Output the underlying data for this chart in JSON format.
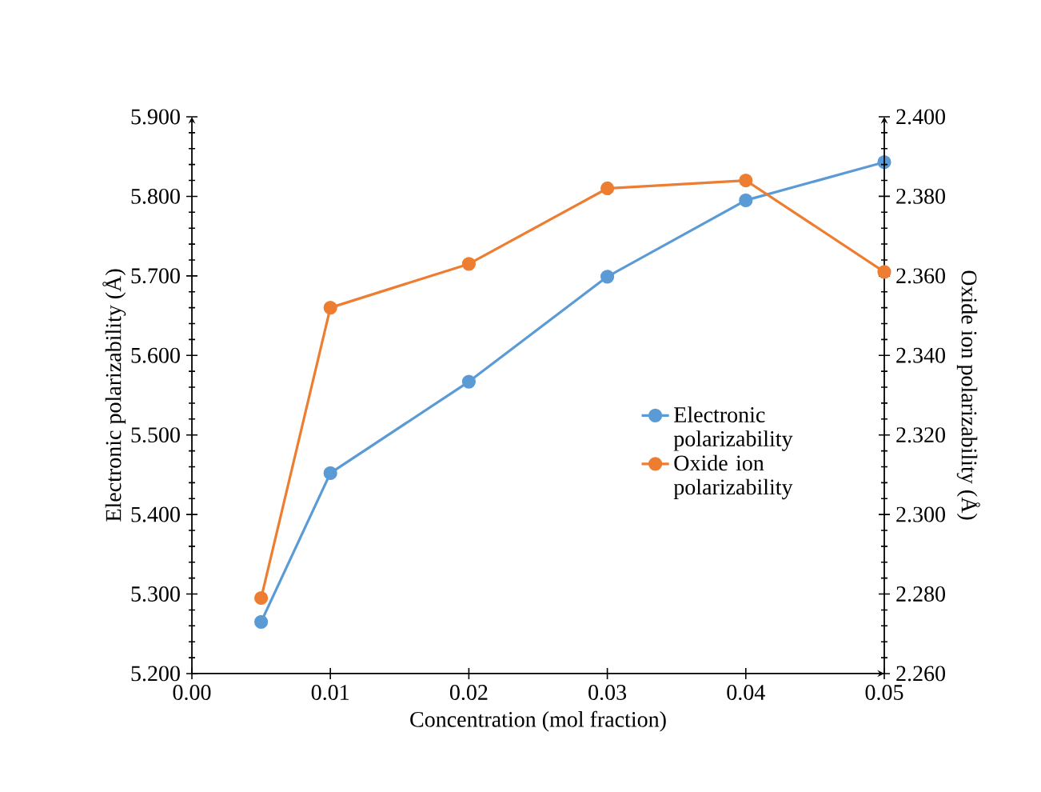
{
  "chart_data": {
    "type": "line",
    "xlabel": "Concentration (mol fraction)",
    "ylabel": "Electronic polarizability (Å)",
    "y2label": "Oxide ion polarizability (Å)",
    "series": [
      {
        "name": "Electronic polarizability",
        "color": "#5b9bd5",
        "x": [
          0.005,
          0.01,
          0.02,
          0.03,
          0.04,
          0.05
        ],
        "values": [
          5.265,
          5.452,
          5.567,
          5.699,
          5.795,
          5.843
        ]
      },
      {
        "name": "Oxide ion polarizability",
        "color": "#ed7d31",
        "axis": "y2",
        "x": [
          0.005,
          0.01,
          0.02,
          0.03,
          0.04,
          0.05
        ],
        "values": [
          2.279,
          2.352,
          2.363,
          2.382,
          2.384,
          2.361
        ]
      }
    ],
    "xlim": [
      0,
      0.05
    ],
    "xticks": [
      {
        "value": 0,
        "label": "0.00"
      },
      {
        "value": 0.01,
        "label": "0.01"
      },
      {
        "value": 0.02,
        "label": "0.02"
      },
      {
        "value": 0.03,
        "label": "0.03"
      },
      {
        "value": 0.04,
        "label": "0.04"
      },
      {
        "value": 0.05,
        "label": "0.05"
      }
    ],
    "ylim": [
      5.2,
      5.9
    ],
    "yticks": [
      {
        "value": 5.2,
        "label": "5.200"
      },
      {
        "value": 5.3,
        "label": "5.300"
      },
      {
        "value": 5.4,
        "label": "5.400"
      },
      {
        "value": 5.5,
        "label": "5.500"
      },
      {
        "value": 5.6,
        "label": "5.600"
      },
      {
        "value": 5.7,
        "label": "5.700"
      },
      {
        "value": 5.8,
        "label": "5.800"
      },
      {
        "value": 5.9,
        "label": "5.900"
      }
    ],
    "y2lim": [
      2.26,
      2.4
    ],
    "y2ticks": [
      {
        "value": 2.26,
        "label": "2.260"
      },
      {
        "value": 2.28,
        "label": "2.280"
      },
      {
        "value": 2.3,
        "label": "2.300"
      },
      {
        "value": 2.32,
        "label": "2.320"
      },
      {
        "value": 2.34,
        "label": "2.340"
      },
      {
        "value": 2.36,
        "label": "2.360"
      },
      {
        "value": 2.38,
        "label": "2.380"
      },
      {
        "value": 2.4,
        "label": "2.400"
      }
    ],
    "grid": false,
    "legend": "right",
    "marker": "circle",
    "line_style": "solid"
  }
}
